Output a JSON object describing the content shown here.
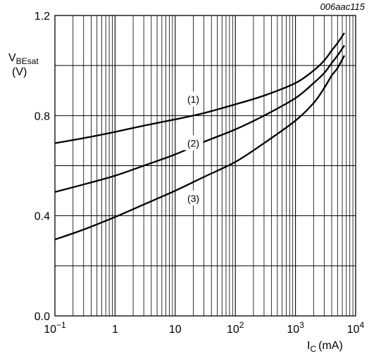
{
  "chart_data": {
    "type": "line",
    "figure_id": "006aac115",
    "ylabel": {
      "main": "V",
      "sub": "BEsat",
      "unit": "(V)"
    },
    "xlabel": {
      "main": "I",
      "sub": "C",
      "unit": "(mA)"
    },
    "xscale": "log",
    "xlim": [
      0.1,
      10000
    ],
    "ylim": [
      0.0,
      1.2
    ],
    "x_ticks": [
      {
        "value": 0.1,
        "base": "10",
        "exp": "−1"
      },
      {
        "value": 1,
        "text": "1"
      },
      {
        "value": 10,
        "text": "10"
      },
      {
        "value": 100,
        "base": "10",
        "exp": "2"
      },
      {
        "value": 1000,
        "base": "10",
        "exp": "3"
      },
      {
        "value": 10000,
        "base": "10",
        "exp": "4"
      }
    ],
    "y_ticks": [
      {
        "value": 0.0,
        "text": "0.0"
      },
      {
        "value": 0.4,
        "text": "0.4"
      },
      {
        "value": 0.8,
        "text": "0.8"
      },
      {
        "value": 1.2,
        "text": "1.2"
      }
    ],
    "y_grid": [
      0.2,
      0.4,
      0.6,
      0.8,
      1.0
    ],
    "grid": true,
    "series": [
      {
        "name": "(1)",
        "x": [
          0.1,
          0.3,
          1,
          3,
          10,
          30,
          100,
          300,
          1000,
          2000,
          3000,
          4000,
          5000,
          6500
        ],
        "y": [
          0.69,
          0.71,
          0.735,
          0.76,
          0.785,
          0.81,
          0.845,
          0.88,
          0.93,
          0.98,
          1.02,
          1.06,
          1.09,
          1.13
        ]
      },
      {
        "name": "(2)",
        "x": [
          0.1,
          0.3,
          1,
          3,
          10,
          30,
          100,
          300,
          1000,
          2000,
          3000,
          4000,
          5000,
          6500
        ],
        "y": [
          0.495,
          0.525,
          0.56,
          0.6,
          0.645,
          0.695,
          0.745,
          0.8,
          0.87,
          0.93,
          0.97,
          1.01,
          1.04,
          1.08
        ]
      },
      {
        "name": "(3)",
        "x": [
          0.1,
          0.3,
          1,
          3,
          10,
          30,
          100,
          300,
          1000,
          2000,
          3000,
          4000,
          5000,
          6500
        ],
        "y": [
          0.305,
          0.345,
          0.395,
          0.445,
          0.5,
          0.555,
          0.615,
          0.69,
          0.78,
          0.85,
          0.91,
          0.96,
          0.99,
          1.04
        ]
      }
    ],
    "annotations": [
      {
        "text": "(1)",
        "series": 0,
        "x": 20,
        "y": 0.865
      },
      {
        "text": "(2)",
        "series": 1,
        "x": 20,
        "y": 0.69
      },
      {
        "text": "(3)",
        "series": 2,
        "x": 20,
        "y": 0.47
      }
    ]
  }
}
